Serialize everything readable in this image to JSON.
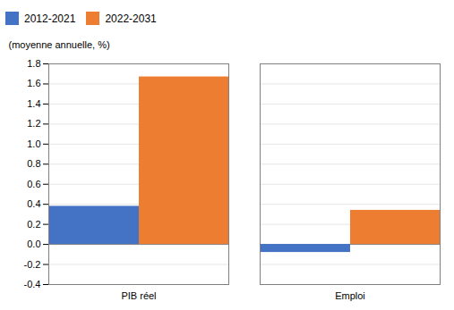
{
  "chart_data": {
    "type": "bar",
    "ylabel": "(moyenne annuelle, %)",
    "categories": [
      "PIB réel",
      "Emploi"
    ],
    "series": [
      {
        "name": "2012-2021",
        "color": "#4472C4",
        "values": [
          0.38,
          -0.08
        ]
      },
      {
        "name": "2022-2031",
        "color": "#ED7D31",
        "values": [
          1.67,
          0.34
        ]
      }
    ],
    "ylim": [
      -0.4,
      1.8
    ],
    "yticks": [
      -0.4,
      -0.2,
      {
        "value": 0,
        "label": "0.0"
      },
      0.2,
      0.4,
      0.6,
      0.8,
      {
        "value": 1,
        "label": "1.0"
      },
      1.2,
      1.4,
      1.6,
      1.8
    ],
    "grid": true,
    "legend": "top"
  }
}
